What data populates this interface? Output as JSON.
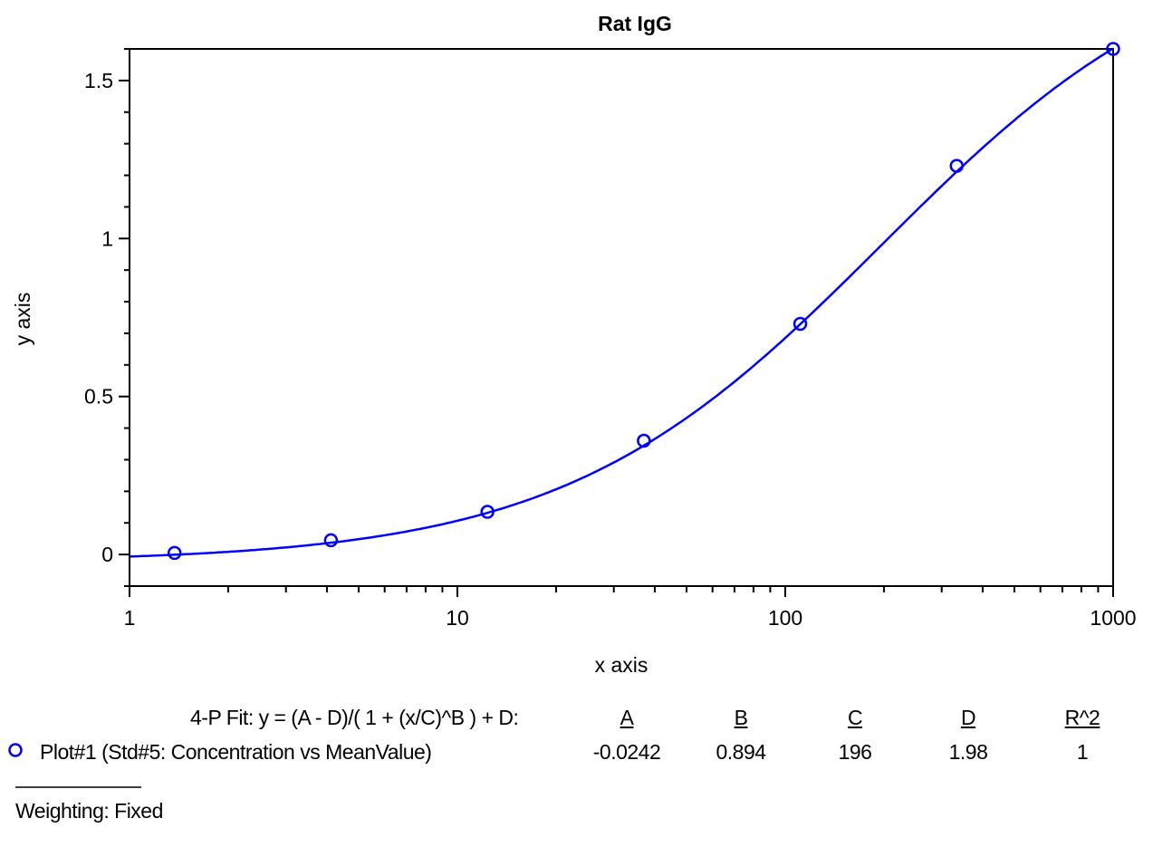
{
  "chart_data": {
    "type": "scatter",
    "title": "Rat IgG",
    "xlabel": "x axis",
    "ylabel": "y axis",
    "xscale": "log",
    "xlim": [
      1,
      1000
    ],
    "ylim": [
      -0.1,
      1.6
    ],
    "xticks": [
      "1",
      "10",
      "100",
      "1000"
    ],
    "yticks": [
      "0",
      "0.5",
      "1",
      "1.5"
    ],
    "grid": false,
    "color": "#0000ff",
    "series": [
      {
        "name": "Plot#1 (Std#5: Concentration vs MeanValue)",
        "x": [
          1.372,
          4.115,
          12.35,
          37.04,
          111.1,
          333.3,
          1000
        ],
        "y": [
          0.005,
          0.045,
          0.135,
          0.36,
          0.73,
          1.23,
          1.6
        ],
        "marker": "circle-open"
      }
    ],
    "fit": {
      "label": "4-P Fit: y = (A - D)/( 1 + (x/C)^B ) + D:",
      "headers": [
        "A",
        "B",
        "C",
        "D",
        "R^2"
      ],
      "values": [
        "-0.0242",
        "0.894",
        "196",
        "1.98",
        "1"
      ],
      "params": {
        "A": -0.0242,
        "B": 0.894,
        "C": 196,
        "D": 1.98
      }
    },
    "weighting": "Weighting: Fixed"
  }
}
